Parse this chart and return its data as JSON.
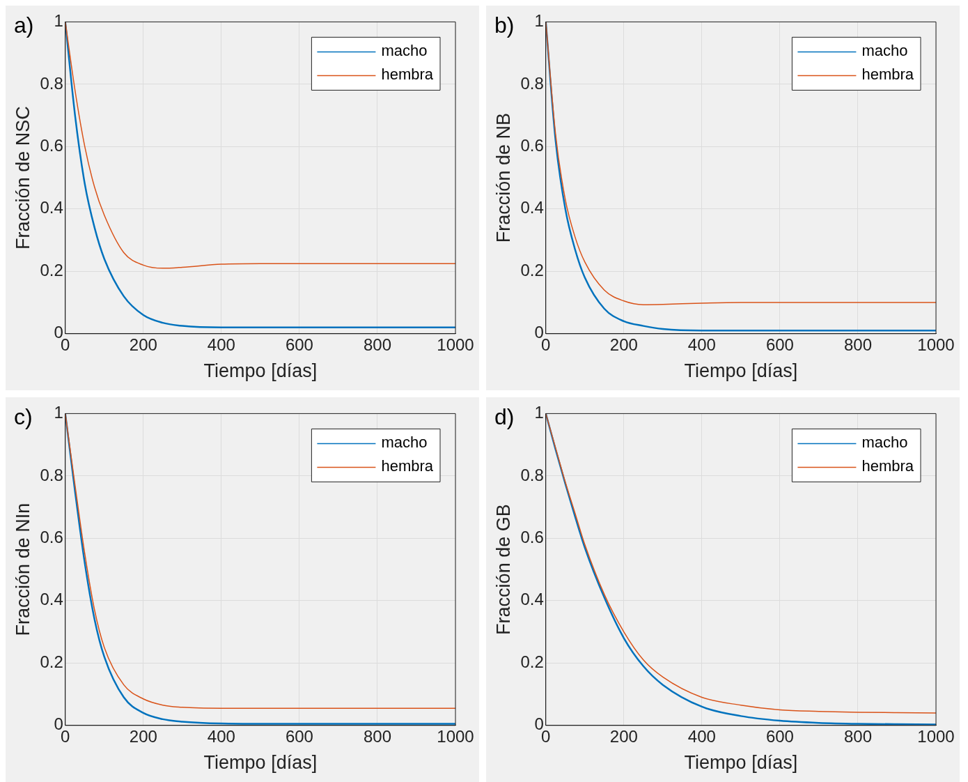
{
  "chart_data": [
    {
      "type": "line",
      "annotations": [
        "a)"
      ],
      "xlabel": "Tiempo [días]",
      "ylabel": "Fracción de NSC",
      "x": [
        0,
        25,
        50,
        75,
        100,
        150,
        200,
        250,
        300,
        400,
        500,
        600,
        700,
        800,
        900,
        1000
      ],
      "xlim": [
        0,
        1000
      ],
      "xticks": [
        0,
        200,
        400,
        600,
        800,
        1000
      ],
      "ylim": [
        0,
        1
      ],
      "yticks": [
        0,
        0.2,
        0.4,
        0.6,
        0.8,
        1
      ],
      "grid": true,
      "legend": "top right",
      "series": [
        {
          "name": "macho",
          "color": "#0072bd",
          "values": [
            1,
            0.7,
            0.48,
            0.34,
            0.24,
            0.12,
            0.06,
            0.035,
            0.025,
            0.02,
            0.02,
            0.02,
            0.02,
            0.02,
            0.02,
            0.02
          ]
        },
        {
          "name": "hembra",
          "color": "#d95319",
          "values": [
            1,
            0.78,
            0.6,
            0.47,
            0.38,
            0.26,
            0.22,
            0.21,
            0.213,
            0.223,
            0.225,
            0.225,
            0.225,
            0.225,
            0.225,
            0.225
          ]
        }
      ]
    },
    {
      "type": "line",
      "annotations": [
        "b)"
      ],
      "xlabel": "Tiempo [días]",
      "ylabel": "Fracción de NB",
      "x": [
        0,
        25,
        50,
        75,
        100,
        150,
        200,
        250,
        300,
        400,
        500,
        600,
        700,
        800,
        900,
        1000
      ],
      "xlim": [
        0,
        1000
      ],
      "xticks": [
        0,
        200,
        400,
        600,
        800,
        1000
      ],
      "ylim": [
        0,
        1
      ],
      "yticks": [
        0,
        0.2,
        0.4,
        0.6,
        0.8,
        1
      ],
      "grid": true,
      "legend": "top right",
      "series": [
        {
          "name": "macho",
          "color": "#0072bd",
          "values": [
            1,
            0.62,
            0.4,
            0.27,
            0.18,
            0.08,
            0.04,
            0.025,
            0.015,
            0.01,
            0.01,
            0.01,
            0.01,
            0.01,
            0.01,
            0.01
          ]
        },
        {
          "name": "hembra",
          "color": "#d95319",
          "values": [
            1,
            0.64,
            0.43,
            0.31,
            0.23,
            0.14,
            0.105,
            0.093,
            0.094,
            0.098,
            0.1,
            0.1,
            0.1,
            0.1,
            0.1,
            0.1
          ]
        }
      ]
    },
    {
      "type": "line",
      "annotations": [
        "c)"
      ],
      "xlabel": "Tiempo [días]",
      "ylabel": "Fracción de NIn",
      "x": [
        0,
        25,
        50,
        75,
        100,
        150,
        200,
        250,
        300,
        400,
        500,
        600,
        700,
        800,
        900,
        1000
      ],
      "xlim": [
        0,
        1000
      ],
      "xticks": [
        0,
        200,
        400,
        600,
        800,
        1000
      ],
      "ylim": [
        0,
        1
      ],
      "yticks": [
        0,
        0.2,
        0.4,
        0.6,
        0.8,
        1
      ],
      "grid": true,
      "legend": "top right",
      "series": [
        {
          "name": "macho",
          "color": "#0072bd",
          "values": [
            1,
            0.75,
            0.52,
            0.34,
            0.22,
            0.09,
            0.04,
            0.02,
            0.012,
            0.006,
            0.005,
            0.005,
            0.005,
            0.005,
            0.005,
            0.005
          ]
        },
        {
          "name": "hembra",
          "color": "#d95319",
          "values": [
            1,
            0.77,
            0.55,
            0.37,
            0.25,
            0.13,
            0.085,
            0.065,
            0.058,
            0.055,
            0.055,
            0.055,
            0.055,
            0.055,
            0.055,
            0.055
          ]
        }
      ]
    },
    {
      "type": "line",
      "annotations": [
        "d)"
      ],
      "xlabel": "Tiempo [días]",
      "ylabel": "Fracción de GB",
      "x": [
        0,
        25,
        50,
        75,
        100,
        150,
        200,
        250,
        300,
        400,
        500,
        600,
        700,
        800,
        900,
        1000
      ],
      "xlim": [
        0,
        1000
      ],
      "xticks": [
        0,
        200,
        400,
        600,
        800,
        1000
      ],
      "ylim": [
        0,
        1
      ],
      "yticks": [
        0,
        0.2,
        0.4,
        0.6,
        0.8,
        1
      ],
      "grid": true,
      "legend": "top right",
      "series": [
        {
          "name": "macho",
          "color": "#0072bd",
          "values": [
            1,
            0.885,
            0.775,
            0.67,
            0.57,
            0.41,
            0.28,
            0.19,
            0.13,
            0.06,
            0.03,
            0.015,
            0.008,
            0.005,
            0.004,
            0.003
          ]
        },
        {
          "name": "hembra",
          "color": "#d95319",
          "values": [
            1,
            0.89,
            0.78,
            0.68,
            0.58,
            0.42,
            0.3,
            0.21,
            0.155,
            0.09,
            0.065,
            0.05,
            0.045,
            0.042,
            0.041,
            0.04
          ]
        }
      ]
    }
  ]
}
